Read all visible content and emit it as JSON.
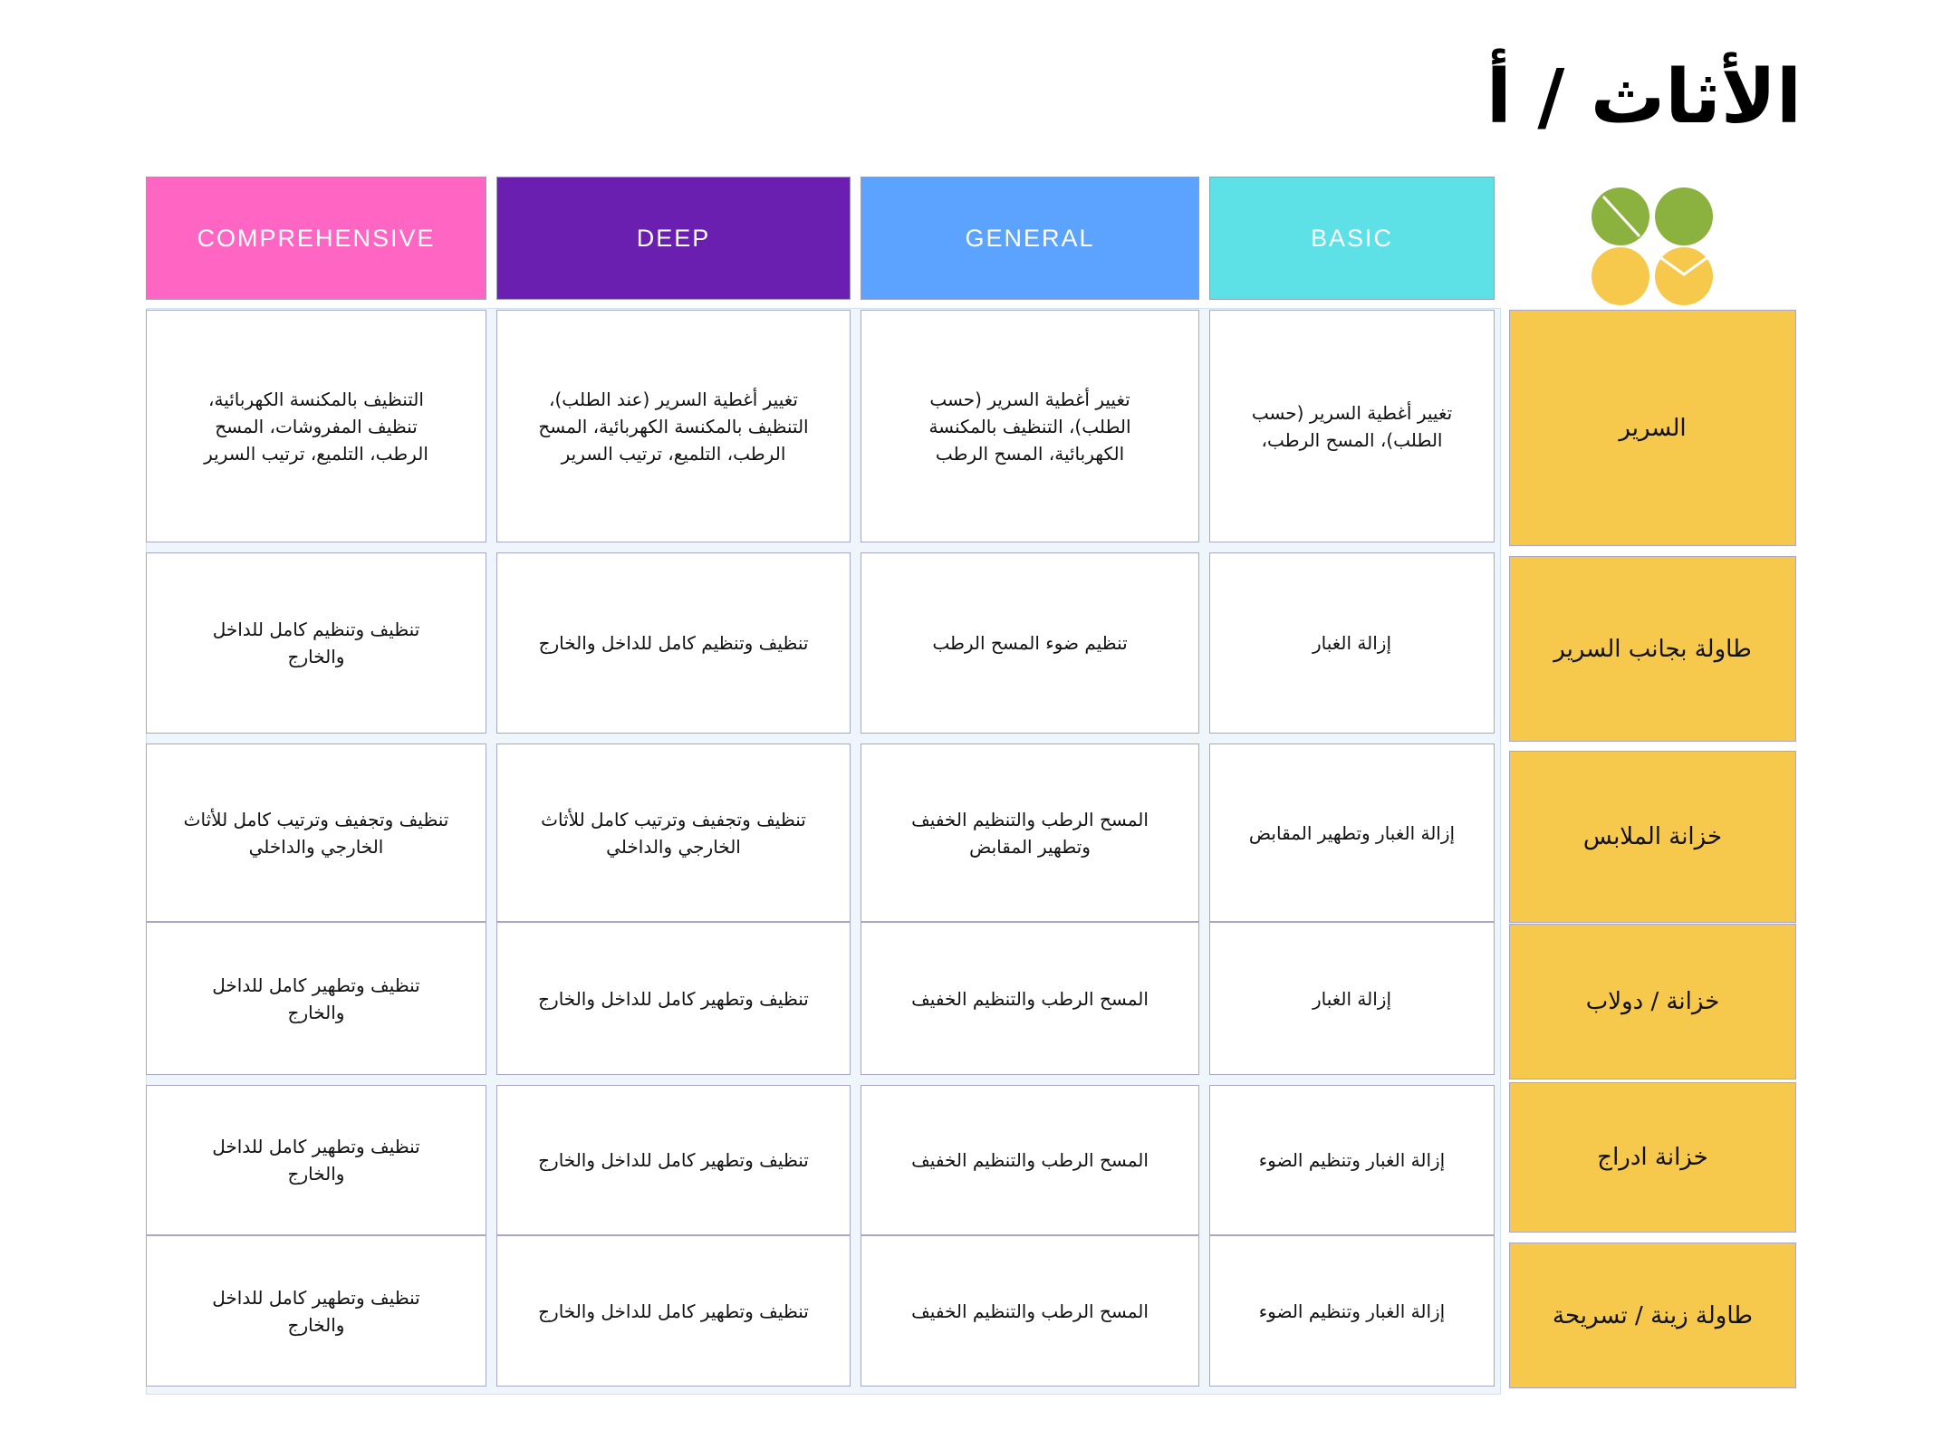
{
  "title": "الأثاث / أ",
  "logo": {
    "icon": "clover-logo-icon",
    "colors": {
      "green": "#8bb23f",
      "yellow": "#f6c84c"
    }
  },
  "columns": [
    {
      "label": "COMPREHENSIVE",
      "color": "#ff66c4"
    },
    {
      "label": "DEEP",
      "color": "#6a1fb0"
    },
    {
      "label": "GENERAL",
      "color": "#5ba3ff"
    },
    {
      "label": "BASIC",
      "color": "#5de0e6"
    }
  ],
  "rows": [
    {
      "label": "السرير",
      "cells": [
        "التنظيف بالمكنسة الكهربائية، تنظيف المفروشات، المسح الرطب، التلميع، ترتيب السرير",
        "تغيير أغطية السرير (عند الطلب)، التنظيف بالمكنسة الكهربائية، المسح الرطب، التلميع، ترتيب السرير",
        "تغيير أغطية السرير (حسب الطلب)، التنظيف بالمكنسة الكهربائية، المسح الرطب",
        "تغيير أغطية السرير (حسب الطلب)، المسح الرطب،"
      ]
    },
    {
      "label": "طاولة بجانب السرير",
      "cells": [
        "تنظيف وتنظيم كامل للداخل والخارج",
        "تنظيف وتنظيم كامل للداخل والخارج",
        "تنظيم ضوء المسح الرطب",
        "إزالة الغبار"
      ]
    },
    {
      "label": "خزانة الملابس",
      "cells": [
        "تنظيف وتجفيف وترتيب كامل للأثاث الخارجي والداخلي",
        "تنظيف وتجفيف وترتيب كامل للأثاث الخارجي والداخلي",
        "المسح الرطب والتنظيم الخفيف وتطهير المقابض",
        "إزالة الغبار وتطهير المقابض"
      ]
    },
    {
      "label": "خزانة / دولاب",
      "cells": [
        "تنظيف وتطهير كامل للداخل والخارج",
        "تنظيف وتطهير كامل للداخل والخارج",
        "المسح الرطب والتنظيم الخفيف",
        "إزالة الغبار"
      ]
    },
    {
      "label": "خزانة ادراج",
      "cells": [
        "تنظيف وتطهير كامل للداخل والخارج",
        "تنظيف وتطهير كامل للداخل والخارج",
        "المسح الرطب والتنظيم الخفيف",
        "إزالة الغبار وتنظيم الضوء"
      ]
    },
    {
      "label": "طاولة زينة / تسريحة",
      "cells": [
        "تنظيف وتطهير كامل للداخل والخارج",
        "تنظيف وتطهير كامل للداخل والخارج",
        "المسح الرطب والتنظيم الخفيف",
        "إزالة الغبار وتنظيم الضوء"
      ]
    }
  ]
}
